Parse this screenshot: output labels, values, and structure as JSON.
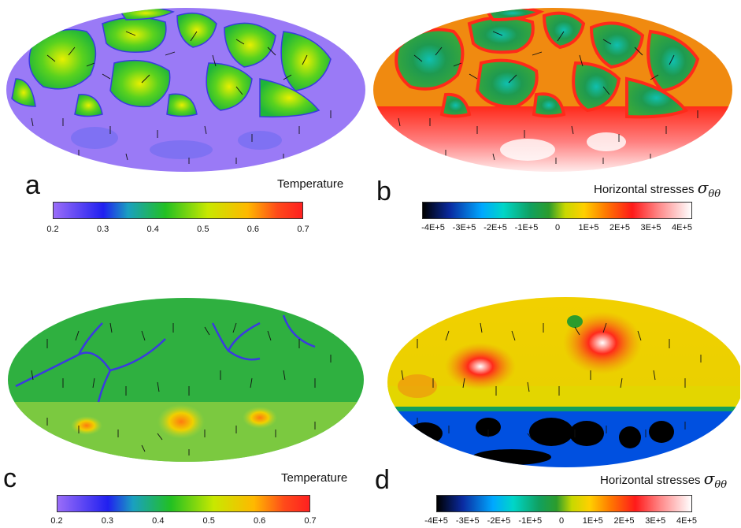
{
  "panels": {
    "a": {
      "letter": "a",
      "colorbar_label": "Temperature",
      "ticks": [
        "0.2",
        "0.3",
        "0.4",
        "0.5",
        "0.6",
        "0.7"
      ]
    },
    "b": {
      "letter": "b",
      "colorbar_label": "Horizontal stresses",
      "symbol": "σ",
      "subscript": "θθ",
      "ticks": [
        "-4E+5",
        "-3E+5",
        "-2E+5",
        "-1E+5",
        "0",
        "1E+5",
        "2E+5",
        "3E+5",
        "4E+5"
      ]
    },
    "c": {
      "letter": "c",
      "colorbar_label": "Temperature",
      "ticks": [
        "0.2",
        "0.3",
        "0.4",
        "0.5",
        "0.6",
        "0.7"
      ]
    },
    "d": {
      "letter": "d",
      "colorbar_label": "Horizontal stresses",
      "symbol": "σ",
      "subscript": "θθ",
      "ticks": [
        "-4E+5",
        "-3E+5",
        "-2E+5",
        "-1E+5",
        "0",
        "1E+5",
        "2E+5",
        "3E+5",
        "4E+5"
      ]
    }
  },
  "colors": {
    "temp_background_a": "#9a7af6",
    "temp_cells": "#22c022",
    "temp_background_c": "#2fb040",
    "stress_b_green": "#1e8e3c",
    "stress_b_red": "#ff2a1a",
    "stress_d_yellow": "#f2d000",
    "stress_d_blue": "#0050e0"
  }
}
